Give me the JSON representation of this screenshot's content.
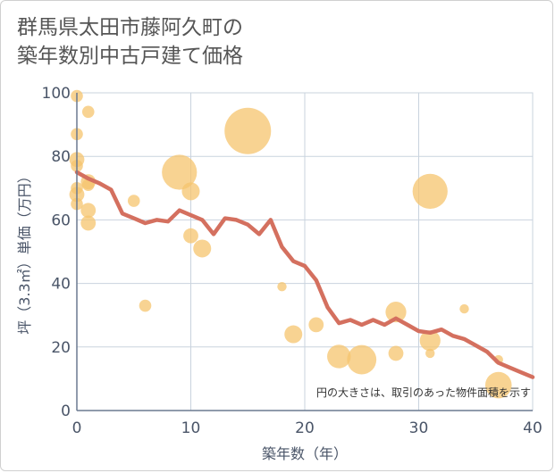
{
  "title_line1": "群馬県太田市藤阿久町の",
  "title_line2": "築年数別中古戸建て価格",
  "chart_data": {
    "type": "scatter",
    "title": "群馬県太田市藤阿久町の築年数別中古戸建て価格",
    "xlabel": "築年数（年）",
    "ylabel": "坪（3.3㎡）単価（万円）",
    "xlim": [
      0,
      40
    ],
    "ylim": [
      0,
      100
    ],
    "xticks": [
      0,
      10,
      20,
      30,
      40
    ],
    "yticks": [
      0,
      20,
      40,
      60,
      80,
      100
    ],
    "grid": true,
    "annotation": "円の大きさは、取引のあった物件面積を示す",
    "colors": {
      "bubble": "#f5c46e",
      "line": "#d4705f",
      "grid": "#c9d3de",
      "axis": "#6b7a90"
    },
    "bubbles": [
      {
        "x": 0,
        "y": 99,
        "size": 3
      },
      {
        "x": 0,
        "y": 87,
        "size": 3
      },
      {
        "x": 0,
        "y": 79,
        "size": 4
      },
      {
        "x": 0,
        "y": 77,
        "size": 3
      },
      {
        "x": 0,
        "y": 70,
        "size": 3
      },
      {
        "x": 0,
        "y": 68,
        "size": 4
      },
      {
        "x": 0,
        "y": 65,
        "size": 3
      },
      {
        "x": 1,
        "y": 94,
        "size": 3
      },
      {
        "x": 1,
        "y": 72,
        "size": 4
      },
      {
        "x": 1,
        "y": 71,
        "size": 3
      },
      {
        "x": 1,
        "y": 63,
        "size": 4
      },
      {
        "x": 1,
        "y": 59,
        "size": 4
      },
      {
        "x": 5,
        "y": 66,
        "size": 3
      },
      {
        "x": 6,
        "y": 33,
        "size": 3
      },
      {
        "x": 9,
        "y": 75,
        "size": 11
      },
      {
        "x": 10,
        "y": 69,
        "size": 5
      },
      {
        "x": 10,
        "y": 55,
        "size": 4
      },
      {
        "x": 11,
        "y": 51,
        "size": 5
      },
      {
        "x": 15,
        "y": 88,
        "size": 15
      },
      {
        "x": 18,
        "y": 39,
        "size": 2
      },
      {
        "x": 19,
        "y": 24,
        "size": 5
      },
      {
        "x": 21,
        "y": 27,
        "size": 4
      },
      {
        "x": 23,
        "y": 17,
        "size": 7
      },
      {
        "x": 25,
        "y": 16,
        "size": 9
      },
      {
        "x": 28,
        "y": 31,
        "size": 6
      },
      {
        "x": 28,
        "y": 18,
        "size": 4
      },
      {
        "x": 31,
        "y": 69,
        "size": 11
      },
      {
        "x": 31,
        "y": 22,
        "size": 6
      },
      {
        "x": 31,
        "y": 18,
        "size": 2
      },
      {
        "x": 34,
        "y": 32,
        "size": 2
      },
      {
        "x": 37,
        "y": 16,
        "size": 2
      },
      {
        "x": 37,
        "y": 8,
        "size": 8
      }
    ],
    "trend_x": [
      0,
      1,
      2,
      3,
      4,
      5,
      6,
      7,
      8,
      9,
      10,
      11,
      12,
      13,
      14,
      15,
      16,
      17,
      18,
      19,
      20,
      21,
      22,
      23,
      24,
      25,
      26,
      27,
      28,
      29,
      30,
      31,
      32,
      33,
      34,
      35,
      36,
      37,
      38,
      39,
      40
    ],
    "trend_y": [
      75,
      73,
      71.5,
      69.5,
      62,
      60.5,
      59,
      60,
      59.5,
      63,
      61.5,
      60,
      55.5,
      60.5,
      60,
      58.5,
      55.5,
      60,
      51.5,
      47,
      45.5,
      41,
      32.5,
      27.5,
      28.5,
      27,
      28.5,
      27,
      29,
      27,
      25,
      24.5,
      25.5,
      23.5,
      22.5,
      20.5,
      18.5,
      15,
      13.5,
      12,
      10.5
    ]
  }
}
